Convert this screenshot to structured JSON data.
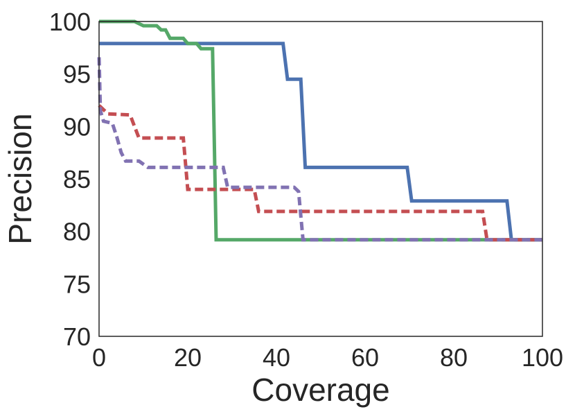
{
  "chart_data": {
    "type": "line",
    "title": "",
    "xlabel": "Coverage",
    "ylabel": "Precision",
    "xlim": [
      0,
      100
    ],
    "ylim": [
      70,
      100
    ],
    "xticks": [
      0,
      20,
      40,
      60,
      80,
      100
    ],
    "yticks": [
      70,
      75,
      80,
      85,
      90,
      95,
      100
    ],
    "xtick_labels": [
      "0",
      "20",
      "40",
      "60",
      "80",
      "100"
    ],
    "ytick_labels": [
      "70",
      "75",
      "80",
      "85",
      "90",
      "95",
      "100"
    ],
    "grid": false,
    "legend": "none",
    "series": [
      {
        "color": "#4c72b0",
        "style": "solid",
        "points": [
          [
            0,
            97.9
          ],
          [
            41.5,
            97.9
          ],
          [
            42.5,
            94.5
          ],
          [
            45.5,
            94.5
          ],
          [
            46.5,
            86.1
          ],
          [
            69.5,
            86.1
          ],
          [
            70.5,
            82.9
          ],
          [
            92,
            82.9
          ],
          [
            93,
            79.2
          ],
          [
            100,
            79.2
          ]
        ]
      },
      {
        "color": "#55a868",
        "style": "solid",
        "points": [
          [
            0,
            100
          ],
          [
            8,
            100
          ],
          [
            10,
            99.6
          ],
          [
            13,
            99.6
          ],
          [
            14,
            99.2
          ],
          [
            15,
            99.2
          ],
          [
            16,
            98.4
          ],
          [
            19,
            98.4
          ],
          [
            20,
            97.9
          ],
          [
            22,
            97.9
          ],
          [
            23,
            97.4
          ],
          [
            25,
            97.4
          ],
          [
            25.6,
            97.4
          ],
          [
            26.4,
            79.2
          ],
          [
            100,
            79.2
          ]
        ]
      },
      {
        "color": "#c44e52",
        "style": "dashed",
        "points": [
          [
            0,
            92
          ],
          [
            2,
            91.2
          ],
          [
            7,
            91.1
          ],
          [
            9,
            88.9
          ],
          [
            19,
            88.9
          ],
          [
            20,
            84
          ],
          [
            35,
            84
          ],
          [
            36,
            81.9
          ],
          [
            86.5,
            81.9
          ],
          [
            87.5,
            79.2
          ],
          [
            100,
            79.2
          ]
        ]
      },
      {
        "color": "#8172b2",
        "style": "dashed",
        "points": [
          [
            0,
            96.6
          ],
          [
            0.3,
            91.5
          ],
          [
            1,
            90.5
          ],
          [
            3,
            90.3
          ],
          [
            4,
            89
          ],
          [
            5,
            87.5
          ],
          [
            6,
            86.7
          ],
          [
            9,
            86.7
          ],
          [
            11,
            86.1
          ],
          [
            28,
            86.1
          ],
          [
            29,
            84.2
          ],
          [
            44,
            84.2
          ],
          [
            45,
            83.8
          ],
          [
            46,
            79.2
          ],
          [
            100,
            79.2
          ]
        ]
      }
    ]
  }
}
